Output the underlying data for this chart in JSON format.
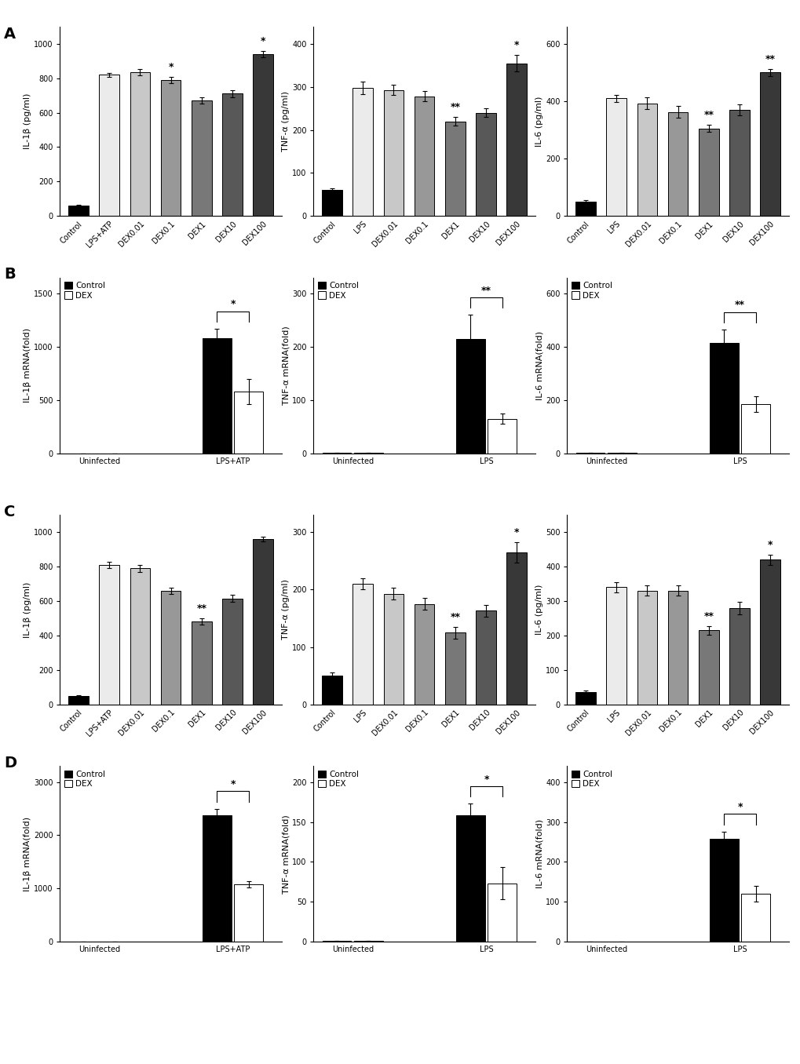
{
  "A": {
    "IL1b": {
      "categories": [
        "Control",
        "LPS+ATP",
        "DEX0.01",
        "DEX0.1",
        "DEX1",
        "DEX10",
        "DEX100"
      ],
      "values": [
        60,
        820,
        835,
        790,
        670,
        710,
        940
      ],
      "errors": [
        5,
        12,
        18,
        18,
        18,
        20,
        18
      ],
      "ylabel": "IL-1β (pg/ml)",
      "ylim": [
        0,
        1100
      ],
      "yticks": [
        0,
        200,
        400,
        600,
        800,
        1000
      ],
      "sig_marks": {
        "DEX0.1": "*",
        "DEX100": "*"
      }
    },
    "TNFa": {
      "categories": [
        "Control",
        "LPS",
        "DEX0.01",
        "DEX0.1",
        "DEX1",
        "DEX10",
        "DEX100"
      ],
      "values": [
        60,
        298,
        293,
        278,
        220,
        240,
        355
      ],
      "errors": [
        5,
        15,
        12,
        12,
        10,
        10,
        20
      ],
      "ylabel": "TNF-α (pg/ml)",
      "ylim": [
        0,
        440
      ],
      "yticks": [
        0,
        100,
        200,
        300,
        400
      ],
      "sig_marks": {
        "DEX1": "**",
        "DEX100": "*"
      }
    },
    "IL6": {
      "categories": [
        "Control",
        "LPS",
        "DEX0.01",
        "DEX0.1",
        "DEX1",
        "DEX10",
        "DEX100"
      ],
      "values": [
        50,
        410,
        393,
        363,
        305,
        370,
        500
      ],
      "errors": [
        5,
        12,
        20,
        20,
        12,
        18,
        12
      ],
      "ylabel": "IL-6 (pg/ml)",
      "ylim": [
        0,
        660
      ],
      "yticks": [
        0,
        200,
        400,
        600
      ],
      "sig_marks": {
        "DEX1": "**",
        "DEX100": "**"
      }
    }
  },
  "B": {
    "IL1b": {
      "groups": [
        "Uninfected",
        "LPS+ATP"
      ],
      "control_vals": [
        1,
        1080
      ],
      "dex_vals": [
        1,
        580
      ],
      "control_errors": [
        0.1,
        90
      ],
      "dex_errors": [
        0.1,
        120
      ],
      "ylabel": "IL-1β mRNA(fold)",
      "ylim": [
        0,
        1650
      ],
      "yticks": [
        0,
        500,
        1000,
        1500
      ],
      "sig": "*"
    },
    "TNFa": {
      "groups": [
        "Uninfected",
        "LPS"
      ],
      "control_vals": [
        1,
        215
      ],
      "dex_vals": [
        1,
        65
      ],
      "control_errors": [
        0.1,
        45
      ],
      "dex_errors": [
        0.1,
        10
      ],
      "ylabel": "TNF-α mRNA(fold)",
      "ylim": [
        0,
        330
      ],
      "yticks": [
        0,
        100,
        200,
        300
      ],
      "sig": "**"
    },
    "IL6": {
      "groups": [
        "Uninfected",
        "LPS"
      ],
      "control_vals": [
        1,
        415
      ],
      "dex_vals": [
        1,
        185
      ],
      "control_errors": [
        0.1,
        50
      ],
      "dex_errors": [
        0.1,
        30
      ],
      "ylabel": "IL-6 mRNA(fold)",
      "ylim": [
        0,
        660
      ],
      "yticks": [
        0,
        200,
        400,
        600
      ],
      "sig": "**"
    }
  },
  "C": {
    "IL1b": {
      "categories": [
        "Control",
        "LPS+ATP",
        "DEX0.01",
        "DEX0.1",
        "DEX1",
        "DEX10",
        "DEX100"
      ],
      "values": [
        50,
        810,
        790,
        660,
        480,
        615,
        960
      ],
      "errors": [
        5,
        20,
        20,
        18,
        18,
        20,
        12
      ],
      "ylabel": "IL-1β (pg/ml)",
      "ylim": [
        0,
        1100
      ],
      "yticks": [
        0,
        200,
        400,
        600,
        800,
        1000
      ],
      "sig_marks": {
        "DEX1": "**"
      }
    },
    "TNFa": {
      "categories": [
        "Control",
        "LPS",
        "DEX0.01",
        "DEX0.1",
        "DEX1",
        "DEX10",
        "DEX100"
      ],
      "values": [
        50,
        210,
        193,
        175,
        125,
        163,
        265
      ],
      "errors": [
        5,
        10,
        10,
        10,
        10,
        10,
        18
      ],
      "ylabel": "TNF-α (pg/ml)",
      "ylim": [
        0,
        330
      ],
      "yticks": [
        0,
        100,
        200,
        300
      ],
      "sig_marks": {
        "DEX1": "**",
        "DEX100": "*"
      }
    },
    "IL6": {
      "categories": [
        "Control",
        "LPS",
        "DEX0.01",
        "DEX0.1",
        "DEX1",
        "DEX10",
        "DEX100"
      ],
      "values": [
        35,
        340,
        330,
        330,
        215,
        280,
        420
      ],
      "errors": [
        5,
        15,
        15,
        15,
        12,
        18,
        15
      ],
      "ylabel": "IL-6 (pg/ml)",
      "ylim": [
        0,
        550
      ],
      "yticks": [
        0,
        100,
        200,
        300,
        400,
        500
      ],
      "sig_marks": {
        "DEX1": "**",
        "DEX100": "*"
      }
    }
  },
  "D": {
    "IL1b": {
      "groups": [
        "Uninfected",
        "LPS+ATP"
      ],
      "control_vals": [
        1,
        2380
      ],
      "dex_vals": [
        1,
        1080
      ],
      "control_errors": [
        0.1,
        120
      ],
      "dex_errors": [
        0.1,
        60
      ],
      "ylabel": "IL-1β mRNA(fold)",
      "ylim": [
        0,
        3300
      ],
      "yticks": [
        0,
        1000,
        2000,
        3000
      ],
      "sig": "*"
    },
    "TNFa": {
      "groups": [
        "Uninfected",
        "LPS"
      ],
      "control_vals": [
        1,
        158
      ],
      "dex_vals": [
        1,
        73
      ],
      "control_errors": [
        0.1,
        15
      ],
      "dex_errors": [
        0.1,
        20
      ],
      "ylabel": "TNF-α mRNA(fold)",
      "ylim": [
        0,
        220
      ],
      "yticks": [
        0,
        50,
        100,
        150,
        200
      ],
      "sig": "*"
    },
    "IL6": {
      "groups": [
        "Uninfected",
        "LPS"
      ],
      "control_vals": [
        1,
        258
      ],
      "dex_vals": [
        1,
        120
      ],
      "control_errors": [
        0.1,
        18
      ],
      "dex_errors": [
        0.1,
        20
      ],
      "ylabel": "IL-6 mRNA(fold)",
      "ylim": [
        0,
        440
      ],
      "yticks": [
        0,
        100,
        200,
        300,
        400
      ],
      "sig": "*"
    }
  },
  "bar_colors": {
    "Control": "#000000",
    "LPS+ATP": "#ebebeb",
    "LPS": "#ebebeb",
    "DEX0.01": "#c8c8c8",
    "DEX0.1": "#989898",
    "DEX1": "#787878",
    "DEX10": "#585858",
    "DEX100": "#383838"
  }
}
